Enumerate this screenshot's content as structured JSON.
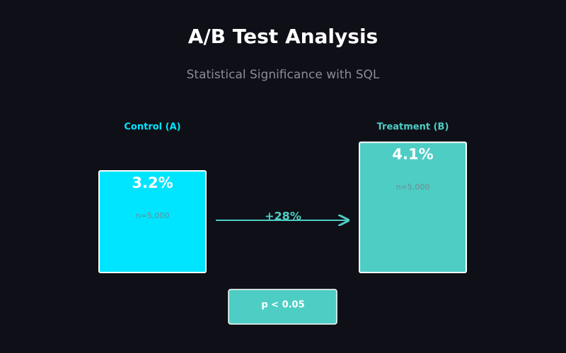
{
  "title": "A/B Test Analysis",
  "subtitle": "Statistical Significance with SQL",
  "groups": [
    {
      "label": "Control (A)",
      "value": 3.2,
      "value_label": "3.2%",
      "sample": "n=5,000",
      "color": "#00e5ff"
    },
    {
      "label": "Treatment (B)",
      "value": 4.1,
      "value_label": "4.1%",
      "sample": "n=5,000",
      "color": "#4ecdc4"
    }
  ],
  "lift": "+28%",
  "significance": "p < 0.05"
}
